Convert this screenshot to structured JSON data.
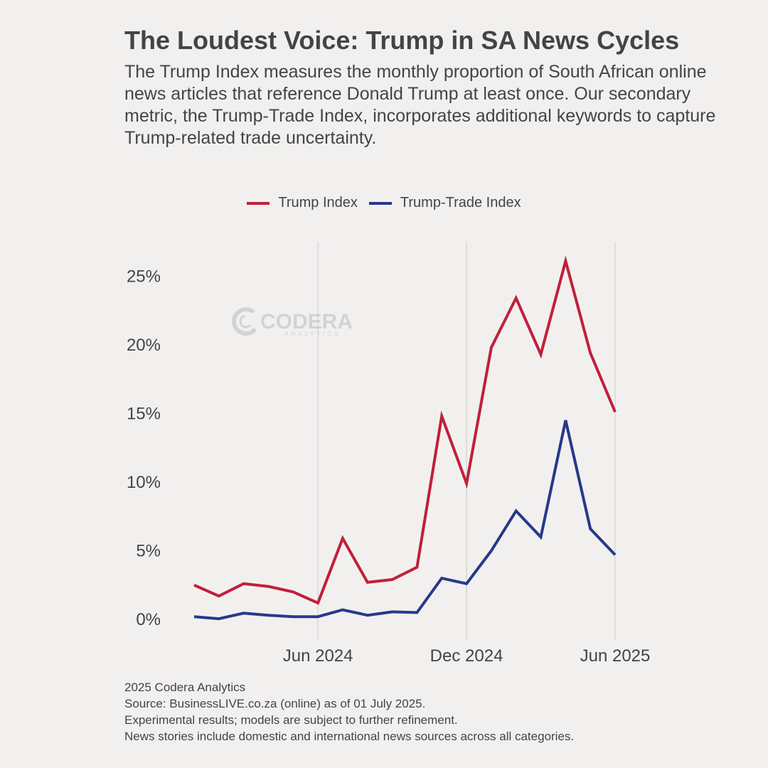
{
  "header": {
    "title": "The Loudest Voice: Trump in SA News Cycles",
    "subtitle": "The Trump Index measures the monthly proportion of South African online news articles that reference Donald Trump at least once. Our secondary metric, the Trump-Trade Index, incorporates additional keywords to capture Trump-related trade uncertainty."
  },
  "watermark": {
    "brand": "CODERA",
    "sub": "ANALYTICS"
  },
  "chart_data": {
    "type": "line",
    "x": [
      "2024-01",
      "2024-02",
      "2024-03",
      "2024-04",
      "2024-05",
      "2024-06",
      "2024-07",
      "2024-08",
      "2024-09",
      "2024-10",
      "2024-11",
      "2024-12",
      "2025-01",
      "2025-02",
      "2025-03",
      "2025-04",
      "2025-05",
      "2025-06"
    ],
    "x_ticks": [
      {
        "x": "2024-06",
        "label": "Jun 2024"
      },
      {
        "x": "2024-12",
        "label": "Dec 2024"
      },
      {
        "x": "2025-06",
        "label": "Jun 2025"
      }
    ],
    "y_ticks": [
      {
        "value": 0,
        "label": "0%"
      },
      {
        "value": 5,
        "label": "5%"
      },
      {
        "value": 10,
        "label": "10%"
      },
      {
        "value": 15,
        "label": "15%"
      },
      {
        "value": 20,
        "label": "20%"
      },
      {
        "value": 25,
        "label": "25%"
      }
    ],
    "ylim": [
      -1.5,
      27.5
    ],
    "grid": "vertical-at-x-ticks",
    "legend": "top-center",
    "series": [
      {
        "name": "Trump Index",
        "color": "#c0203a",
        "values": [
          2.5,
          1.7,
          2.6,
          2.4,
          2.0,
          1.2,
          5.9,
          2.7,
          2.9,
          3.8,
          14.8,
          9.9,
          19.8,
          23.4,
          19.3,
          26.1,
          19.4,
          15.1
        ]
      },
      {
        "name": "Trump-Trade Index",
        "color": "#27398a",
        "values": [
          0.2,
          0.05,
          0.45,
          0.3,
          0.2,
          0.2,
          0.7,
          0.3,
          0.55,
          0.5,
          3.0,
          2.6,
          5.0,
          7.9,
          6.0,
          14.5,
          6.6,
          4.7
        ]
      }
    ]
  },
  "footer": {
    "line1": "2025 Codera Analytics",
    "line2": "Source: BusinessLIVE.co.za (online) as of 01 July 2025.",
    "line3": "Experimental results; models are subject to further refinement.",
    "line4": "News stories include domestic and international news sources across all categories."
  }
}
